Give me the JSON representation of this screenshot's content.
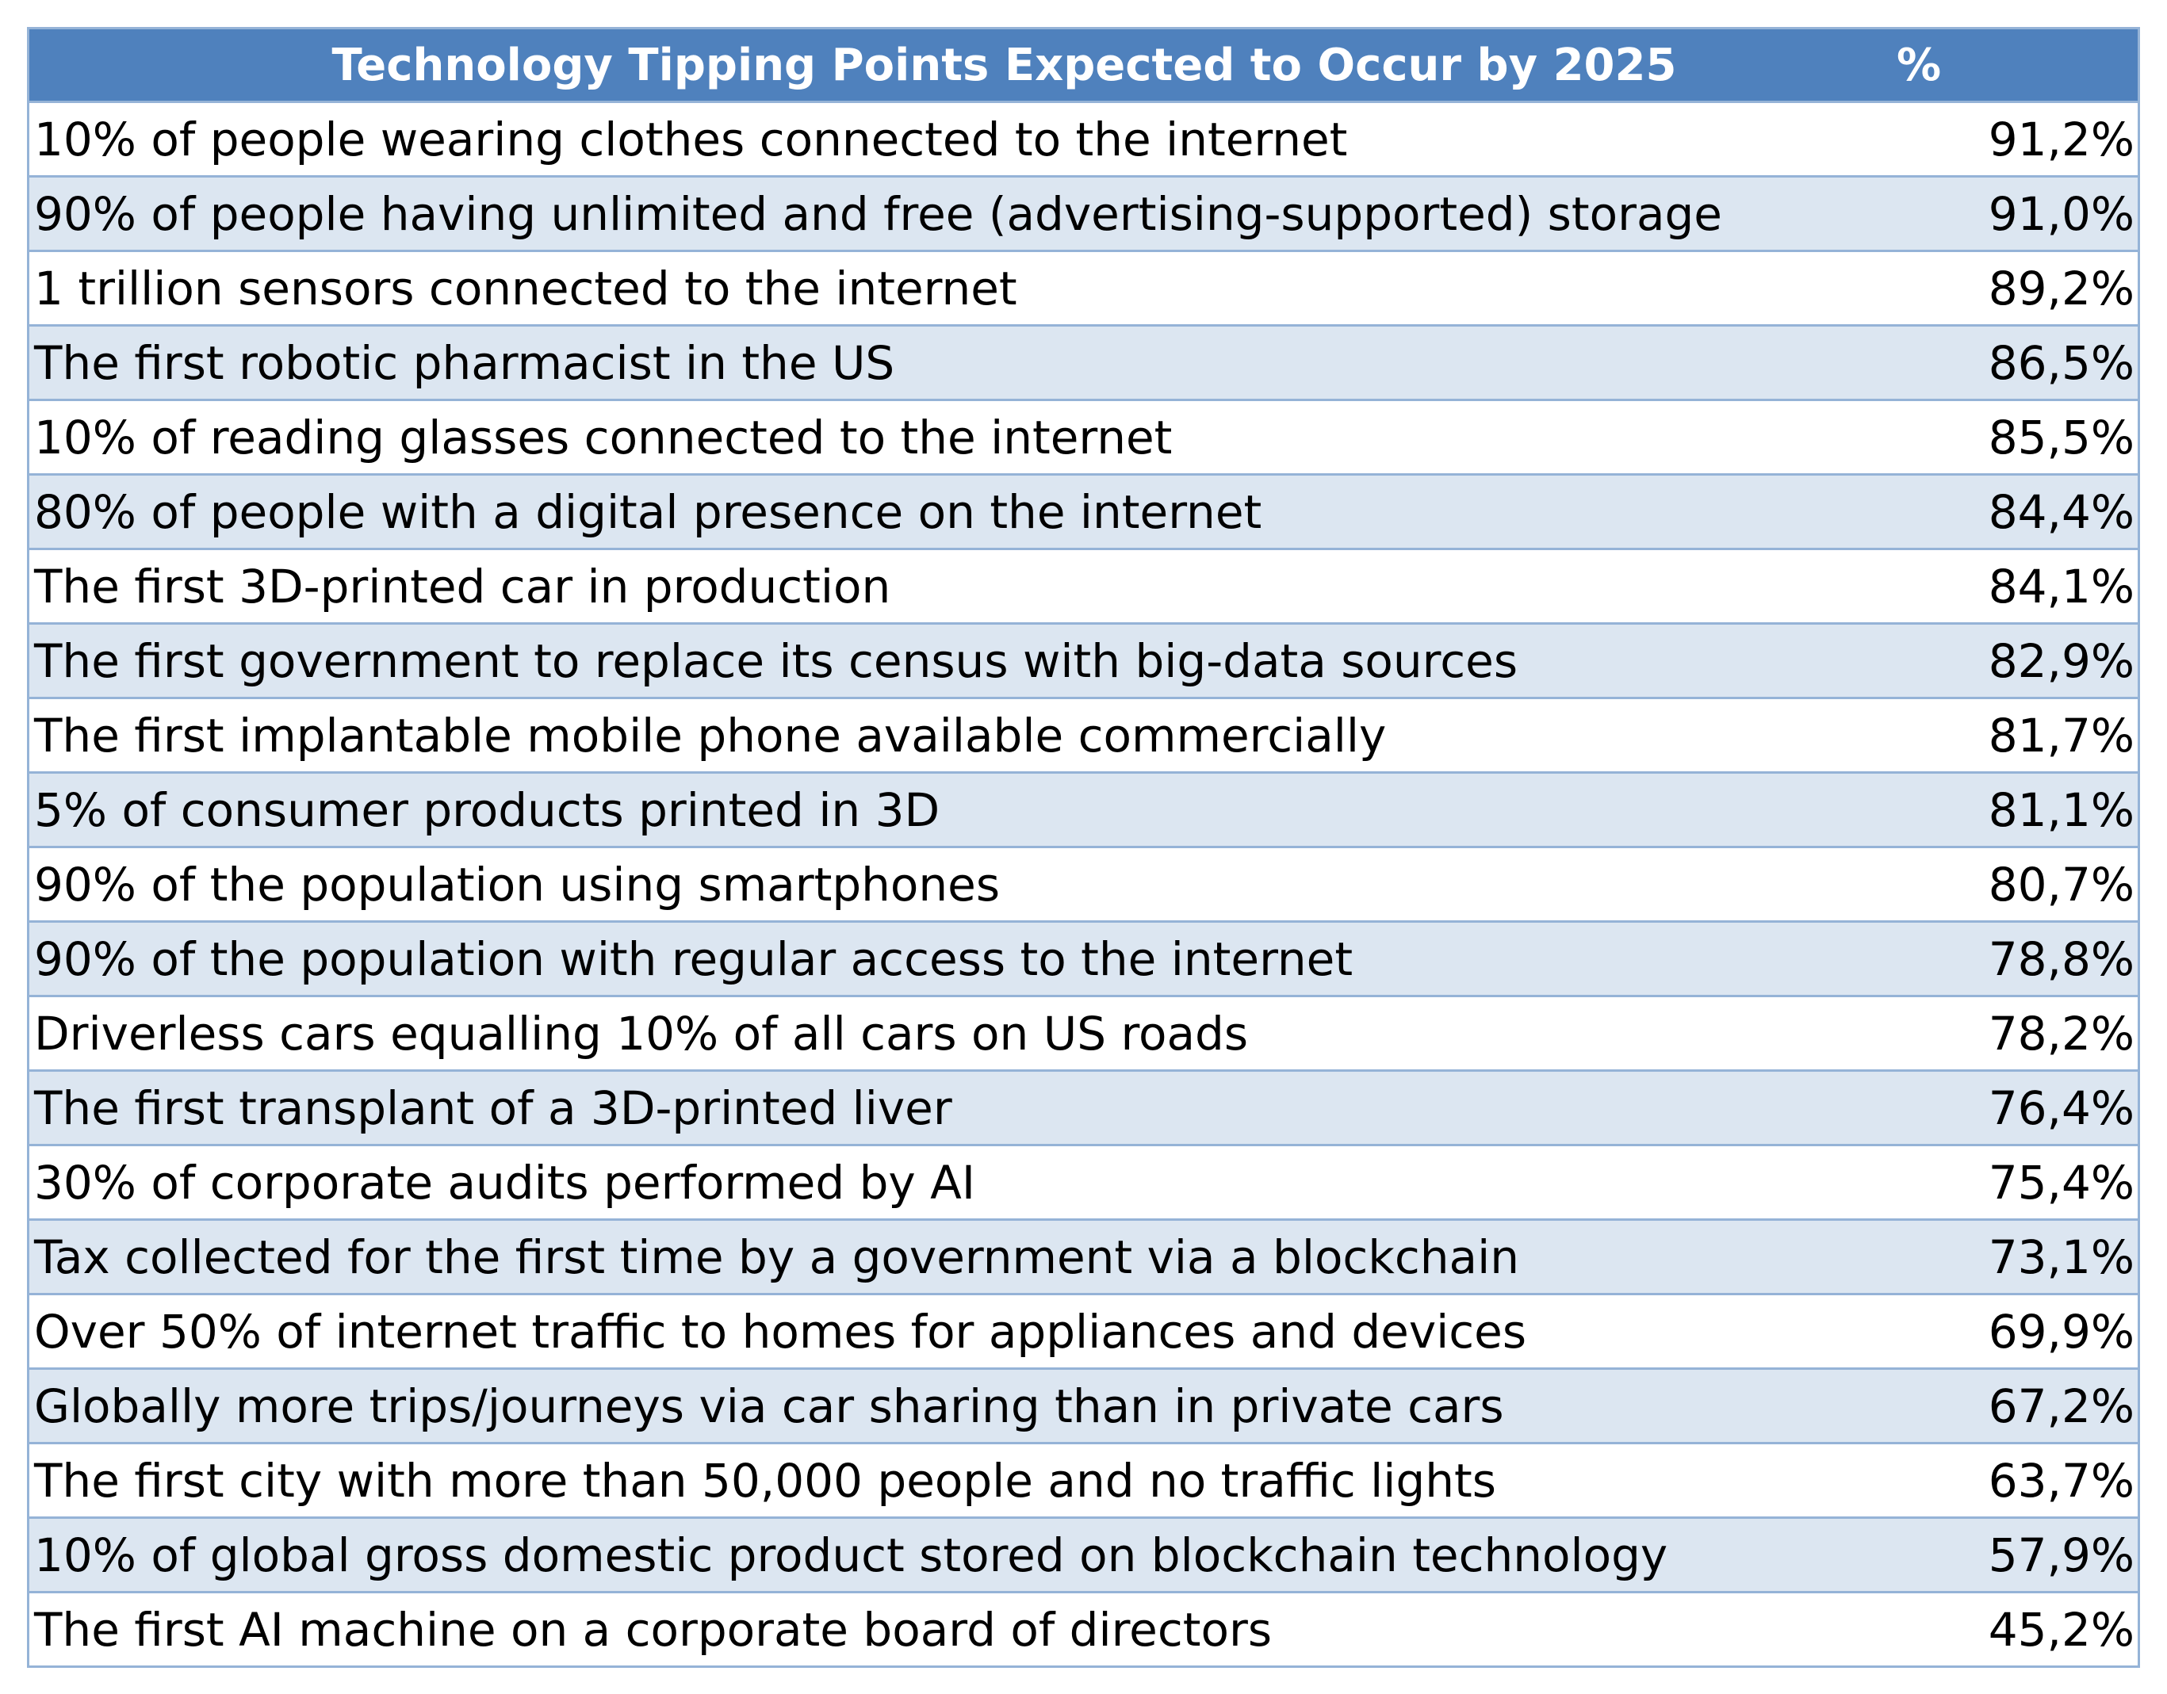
{
  "chart_data": {
    "type": "table",
    "columns": [
      "Technology Tipping Points Expected to Occur by 2025",
      "%"
    ],
    "rows": [
      {
        "label": "10% of people wearing clothes connected to the internet",
        "value": "91,2%"
      },
      {
        "label": "90% of people having unlimited and free (advertising-supported) storage",
        "value": "91,0%"
      },
      {
        "label": "1 trillion sensors connected to the internet",
        "value": "89,2%"
      },
      {
        "label": "The first robotic pharmacist in the US",
        "value": "86,5%"
      },
      {
        "label": "10% of reading glasses connected to the internet",
        "value": "85,5%"
      },
      {
        "label": "80% of people with a digital presence on the internet",
        "value": "84,4%"
      },
      {
        "label": "The first 3D-printed car in production",
        "value": "84,1%"
      },
      {
        "label": "The first government to replace its census with big-data sources",
        "value": "82,9%"
      },
      {
        "label": "The first implantable mobile phone available commercially",
        "value": "81,7%"
      },
      {
        "label": "5% of consumer products printed in 3D",
        "value": "81,1%"
      },
      {
        "label": "90% of the population using smartphones",
        "value": "80,7%"
      },
      {
        "label": "90% of the population with regular access to the internet",
        "value": "78,8%"
      },
      {
        "label": "Driverless cars equalling 10% of all cars on US roads",
        "value": "78,2%"
      },
      {
        "label": "The first transplant of a 3D-printed liver",
        "value": "76,4%"
      },
      {
        "label": "30% of corporate audits performed by AI",
        "value": "75,4%"
      },
      {
        "label": "Tax collected for the first time by a government via a blockchain",
        "value": "73,1%"
      },
      {
        "label": "Over 50% of internet traffic to homes for appliances and devices",
        "value": "69,9%"
      },
      {
        "label": "Globally more trips/journeys via car sharing than in private cars",
        "value": "67,2%"
      },
      {
        "label": "The first city with more than 50,000 people and no traffic lights",
        "value": "63,7%"
      },
      {
        "label": "10% of global gross domestic product stored on blockchain technology",
        "value": "57,9%"
      },
      {
        "label": "The first AI machine on a corporate board of directors",
        "value": "45,2%"
      }
    ]
  },
  "colors": {
    "header_bg": "#4f81bd",
    "header_text": "#ffffff",
    "band_row": "#dce6f1",
    "plain_row": "#ffffff",
    "border": "#95b3d7"
  }
}
